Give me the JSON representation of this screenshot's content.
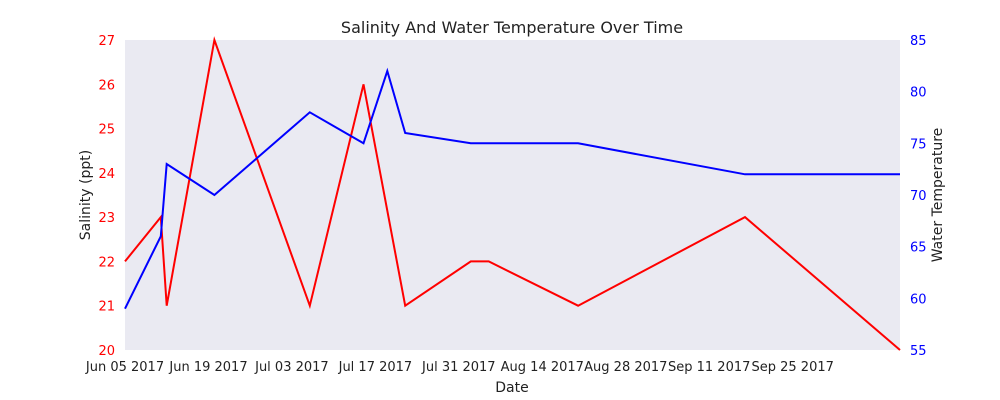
{
  "chart_data": {
    "type": "line",
    "title": "Salinity And Water Temperature Over Time",
    "xlabel": "Date",
    "x_range": [
      "2017-06-05",
      "2017-10-13"
    ],
    "x_ticks": [
      {
        "date": "2017-06-05",
        "label": "Jun 05 2017"
      },
      {
        "date": "2017-06-19",
        "label": "Jun 19 2017"
      },
      {
        "date": "2017-07-03",
        "label": "Jul 03 2017"
      },
      {
        "date": "2017-07-17",
        "label": "Jul 17 2017"
      },
      {
        "date": "2017-07-31",
        "label": "Jul 31 2017"
      },
      {
        "date": "2017-08-14",
        "label": "Aug 14 2017"
      },
      {
        "date": "2017-08-28",
        "label": "Aug 28 2017"
      },
      {
        "date": "2017-09-11",
        "label": "Sep 11 2017"
      },
      {
        "date": "2017-09-25",
        "label": "Sep 25 2017"
      }
    ],
    "left_axis": {
      "label": "Salinity (ppt)",
      "color": "#ff0000",
      "ylim": [
        20,
        27
      ],
      "ticks": [
        20,
        21,
        22,
        23,
        24,
        25,
        26,
        27
      ]
    },
    "right_axis": {
      "label": "Water Temperature",
      "color": "#0000ff",
      "ylim": [
        55,
        85
      ],
      "ticks": [
        55,
        60,
        65,
        70,
        75,
        80,
        85
      ]
    },
    "grid": false,
    "background": "#eaeaf2",
    "series": [
      {
        "axis": "left",
        "color": "#ff0000",
        "points": [
          {
            "x": "2017-06-05",
            "y": 22
          },
          {
            "x": "2017-06-11",
            "y": 23
          },
          {
            "x": "2017-06-12",
            "y": 21
          },
          {
            "x": "2017-06-20",
            "y": 27
          },
          {
            "x": "2017-07-06",
            "y": 21
          },
          {
            "x": "2017-07-15",
            "y": 26
          },
          {
            "x": "2017-07-22",
            "y": 21
          },
          {
            "x": "2017-08-02",
            "y": 22
          },
          {
            "x": "2017-08-05",
            "y": 22
          },
          {
            "x": "2017-08-20",
            "y": 21
          },
          {
            "x": "2017-09-17",
            "y": 23
          },
          {
            "x": "2017-10-13",
            "y": 20
          }
        ]
      },
      {
        "axis": "right",
        "color": "#0000ff",
        "points": [
          {
            "x": "2017-06-05",
            "y": 59
          },
          {
            "x": "2017-06-11",
            "y": 66
          },
          {
            "x": "2017-06-12",
            "y": 73
          },
          {
            "x": "2017-06-20",
            "y": 70
          },
          {
            "x": "2017-07-06",
            "y": 78
          },
          {
            "x": "2017-07-15",
            "y": 75
          },
          {
            "x": "2017-07-19",
            "y": 82
          },
          {
            "x": "2017-07-22",
            "y": 76
          },
          {
            "x": "2017-08-02",
            "y": 75
          },
          {
            "x": "2017-08-20",
            "y": 75
          },
          {
            "x": "2017-09-17",
            "y": 72
          },
          {
            "x": "2017-10-13",
            "y": 72
          }
        ]
      }
    ]
  }
}
